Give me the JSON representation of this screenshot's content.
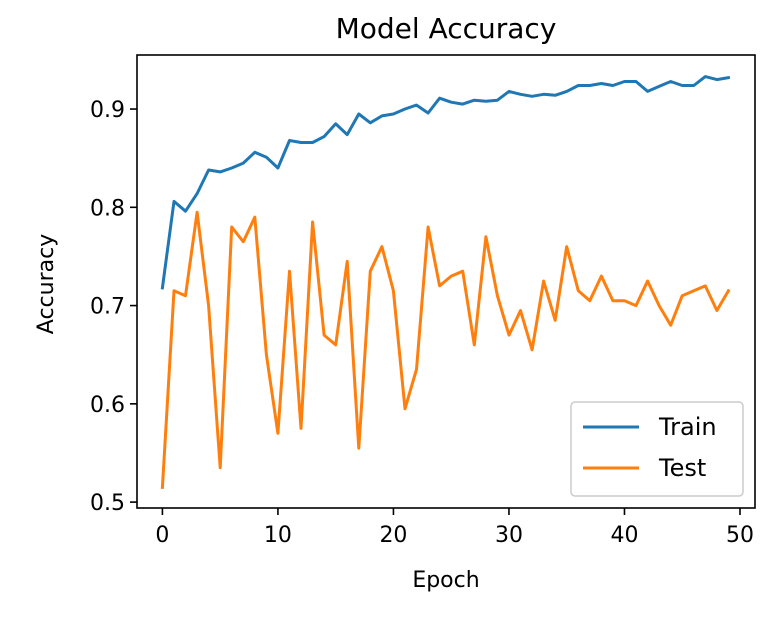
{
  "chart_data": {
    "type": "line",
    "title": "Model Accuracy",
    "xlabel": "Epoch",
    "ylabel": "Accuracy",
    "xlim": [
      -2.2,
      51.3
    ],
    "ylim": [
      0.494,
      0.955
    ],
    "xticks": [
      0,
      10,
      20,
      30,
      40,
      50
    ],
    "xtick_labels": [
      "0",
      "10",
      "20",
      "30",
      "40",
      "50"
    ],
    "yticks": [
      0.5,
      0.6,
      0.7,
      0.8,
      0.9
    ],
    "ytick_labels": [
      "0.5",
      "0.6",
      "0.7",
      "0.8",
      "0.9"
    ],
    "grid": false,
    "legend_position": "lower-right",
    "x": [
      0,
      1,
      2,
      3,
      4,
      5,
      6,
      7,
      8,
      9,
      10,
      11,
      12,
      13,
      14,
      15,
      16,
      17,
      18,
      19,
      20,
      21,
      22,
      23,
      24,
      25,
      26,
      27,
      28,
      29,
      30,
      31,
      32,
      33,
      34,
      35,
      36,
      37,
      38,
      39,
      40,
      41,
      42,
      43,
      44,
      45,
      46,
      47,
      48,
      49
    ],
    "series": [
      {
        "name": "Train",
        "color": "#1f77b4",
        "values": [
          0.718,
          0.806,
          0.796,
          0.814,
          0.838,
          0.836,
          0.84,
          0.845,
          0.856,
          0.851,
          0.84,
          0.868,
          0.866,
          0.866,
          0.872,
          0.885,
          0.874,
          0.895,
          0.886,
          0.893,
          0.895,
          0.9,
          0.904,
          0.896,
          0.911,
          0.907,
          0.905,
          0.909,
          0.908,
          0.909,
          0.918,
          0.915,
          0.913,
          0.915,
          0.914,
          0.918,
          0.924,
          0.924,
          0.926,
          0.924,
          0.928,
          0.928,
          0.918,
          0.923,
          0.928,
          0.924,
          0.924,
          0.933,
          0.93,
          0.932
        ]
      },
      {
        "name": "Test",
        "color": "#ff7f0e",
        "values": [
          0.515,
          0.715,
          0.71,
          0.795,
          0.7,
          0.535,
          0.78,
          0.765,
          0.79,
          0.65,
          0.57,
          0.735,
          0.575,
          0.785,
          0.67,
          0.66,
          0.745,
          0.555,
          0.735,
          0.76,
          0.715,
          0.595,
          0.635,
          0.78,
          0.72,
          0.73,
          0.735,
          0.66,
          0.77,
          0.71,
          0.67,
          0.695,
          0.655,
          0.725,
          0.685,
          0.76,
          0.715,
          0.705,
          0.73,
          0.705,
          0.705,
          0.7,
          0.725,
          0.7,
          0.68,
          0.71,
          0.715,
          0.72,
          0.695,
          0.715
        ]
      }
    ]
  }
}
